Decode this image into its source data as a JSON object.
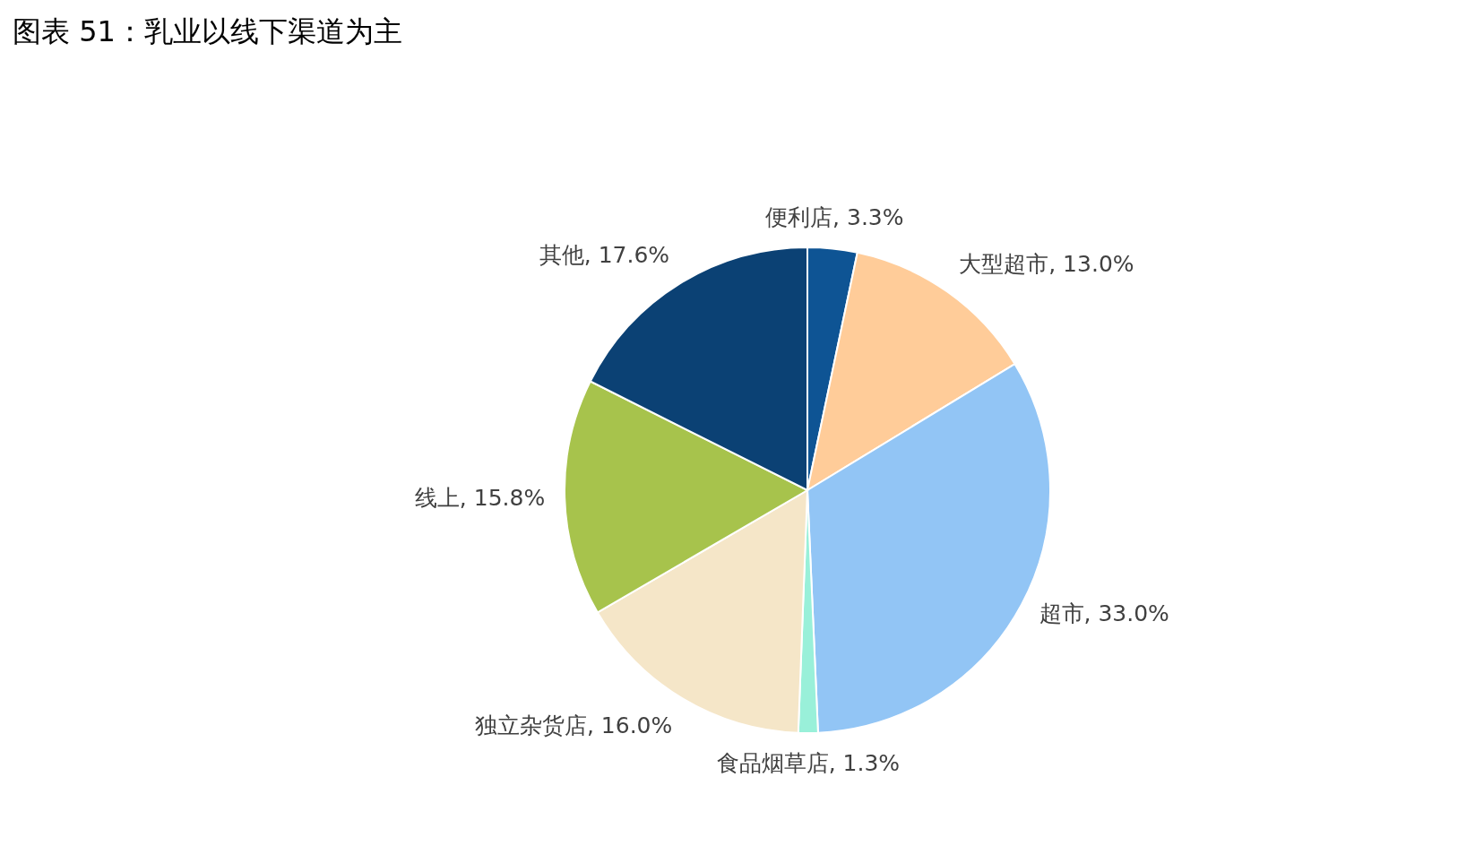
{
  "chart_data": {
    "type": "pie",
    "title": "图表 51：乳业以线下渠道为主",
    "categories": [
      "便利店",
      "大型超市",
      "超市",
      "食品烟草店",
      "独立杂货店",
      "线上",
      "其他"
    ],
    "values": [
      3.3,
      13.0,
      33.0,
      1.3,
      16.0,
      15.8,
      17.6
    ],
    "colors": [
      "#0e5494",
      "#ffcc99",
      "#92c5f5",
      "#99f0d9",
      "#f5e6c8",
      "#a7c34c",
      "#0b4174"
    ],
    "value_labels": [
      "3.3%",
      "13.0%",
      "33.0%",
      "1.3%",
      "16.0%",
      "15.8%",
      "17.6%"
    ]
  }
}
